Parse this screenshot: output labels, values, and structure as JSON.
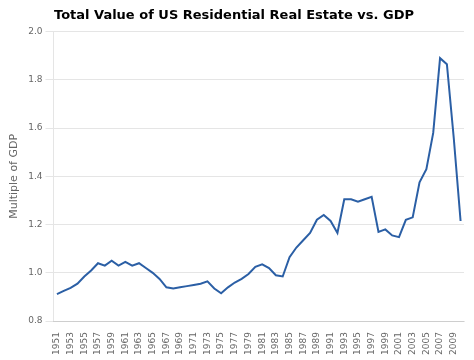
{
  "chart_data": {
    "type": "line",
    "title": "Total Value of US Residential Real Estate vs. GDP",
    "ylabel": "Multiple of GDP",
    "x": [
      1951,
      1952,
      1953,
      1954,
      1955,
      1956,
      1957,
      1958,
      1959,
      1960,
      1961,
      1962,
      1963,
      1964,
      1965,
      1966,
      1967,
      1968,
      1969,
      1970,
      1971,
      1972,
      1973,
      1974,
      1975,
      1976,
      1977,
      1978,
      1979,
      1980,
      1981,
      1982,
      1983,
      1984,
      1985,
      1986,
      1987,
      1988,
      1989,
      1990,
      1991,
      1992,
      1993,
      1994,
      1995,
      1996,
      1997,
      1998,
      1999,
      2000,
      2001,
      2002,
      2003,
      2004,
      2005,
      2006,
      2007,
      2008,
      2009,
      2010
    ],
    "values": [
      0.912,
      0.925,
      0.938,
      0.955,
      0.985,
      1.01,
      1.04,
      1.03,
      1.05,
      1.03,
      1.045,
      1.03,
      1.04,
      1.02,
      1.0,
      0.975,
      0.94,
      0.935,
      0.94,
      0.945,
      0.95,
      0.955,
      0.965,
      0.935,
      0.915,
      0.94,
      0.96,
      0.975,
      0.995,
      1.025,
      1.035,
      1.02,
      0.99,
      0.985,
      1.065,
      1.105,
      1.135,
      1.165,
      1.22,
      1.24,
      1.215,
      1.165,
      1.305,
      1.305,
      1.295,
      1.305,
      1.315,
      1.17,
      1.18,
      1.155,
      1.148,
      1.22,
      1.23,
      1.375,
      1.43,
      1.58,
      1.89,
      1.865,
      1.56,
      1.215
    ],
    "color": "#2b5fa5",
    "xlim": [
      1950.5,
      2010.5
    ],
    "xticks": [
      1951,
      1953,
      1955,
      1957,
      1959,
      1961,
      1963,
      1965,
      1967,
      1969,
      1971,
      1973,
      1975,
      1977,
      1979,
      1981,
      1983,
      1985,
      1987,
      1989,
      1991,
      1993,
      1995,
      1997,
      1999,
      2001,
      2003,
      2005,
      2007,
      2009
    ],
    "ylim": [
      0.8,
      2.0
    ],
    "yticks": [
      0.8,
      {
        "value": 1.0,
        "label": "1.0"
      },
      1.2,
      1.4,
      1.6,
      1.8,
      {
        "value": 2.0,
        "label": "2.0"
      }
    ],
    "grid": "y"
  }
}
